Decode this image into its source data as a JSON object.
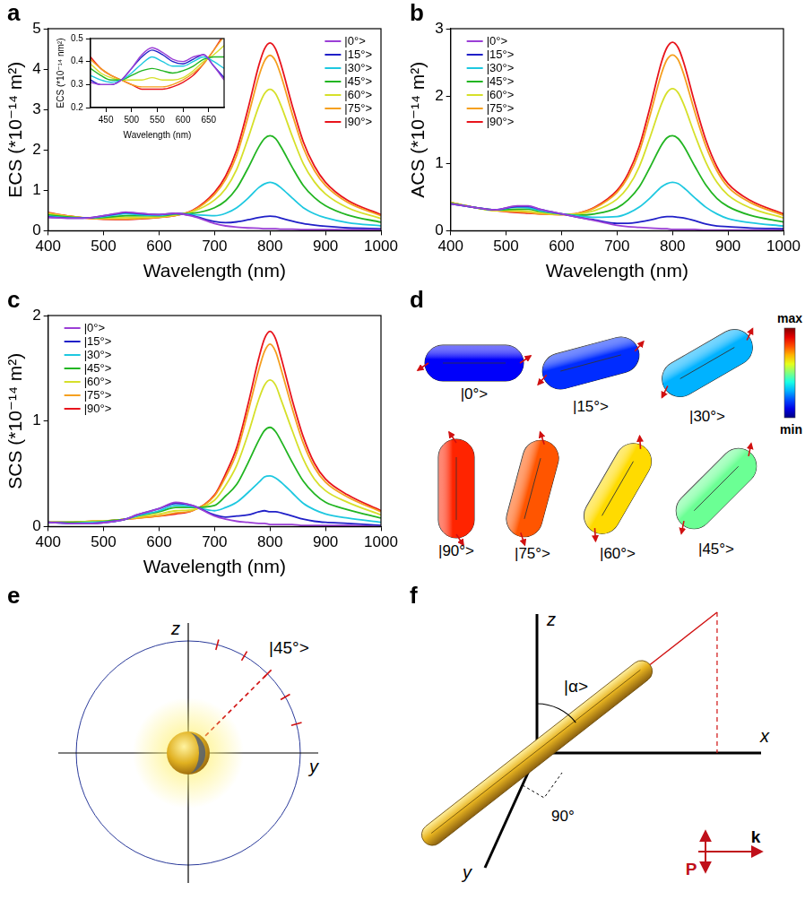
{
  "chart_data": [
    {
      "panel_label": "a",
      "type": "line",
      "x_label": "Wavelength (nm)",
      "y_label": "ECS (*10⁻¹⁴ m²)",
      "xlim": [
        400,
        1000
      ],
      "xticks": [
        400,
        500,
        600,
        700,
        800,
        900,
        1000
      ],
      "ylim": [
        0,
        5
      ],
      "yticks": [
        0,
        1,
        2,
        3,
        4,
        5
      ],
      "grid": false,
      "legend": "upper right",
      "x": [
        400,
        440,
        480,
        520,
        540,
        560,
        600,
        630,
        660,
        700,
        720,
        740,
        760,
        780,
        790,
        800,
        810,
        820,
        840,
        860,
        880,
        900,
        940,
        1000
      ],
      "series": [
        {
          "name": "|0°>",
          "color": "#9b3fd6",
          "values": [
            0.33,
            0.31,
            0.33,
            0.42,
            0.46,
            0.44,
            0.4,
            0.43,
            0.36,
            0.18,
            0.12,
            0.09,
            0.07,
            0.06,
            0.05,
            0.05,
            0.05,
            0.04,
            0.04,
            0.03,
            0.03,
            0.03,
            0.02,
            0.02
          ]
        },
        {
          "name": "|15°>",
          "color": "#2020c8",
          "values": [
            0.34,
            0.31,
            0.33,
            0.41,
            0.45,
            0.43,
            0.4,
            0.43,
            0.37,
            0.23,
            0.2,
            0.22,
            0.27,
            0.33,
            0.35,
            0.36,
            0.35,
            0.31,
            0.24,
            0.18,
            0.14,
            0.11,
            0.07,
            0.05
          ]
        },
        {
          "name": "|30°>",
          "color": "#1ec8e0",
          "values": [
            0.36,
            0.32,
            0.32,
            0.39,
            0.42,
            0.4,
            0.38,
            0.42,
            0.4,
            0.37,
            0.43,
            0.57,
            0.8,
            1.07,
            1.16,
            1.2,
            1.16,
            1.06,
            0.81,
            0.57,
            0.42,
            0.32,
            0.2,
            0.12
          ]
        },
        {
          "name": "|45°>",
          "color": "#22b522",
          "values": [
            0.39,
            0.34,
            0.32,
            0.35,
            0.37,
            0.37,
            0.37,
            0.41,
            0.43,
            0.57,
            0.74,
            1.05,
            1.54,
            2.08,
            2.28,
            2.35,
            2.28,
            2.07,
            1.57,
            1.12,
            0.82,
            0.62,
            0.39,
            0.21
          ]
        },
        {
          "name": "|60°>",
          "color": "#d6e02a",
          "values": [
            0.42,
            0.35,
            0.31,
            0.32,
            0.33,
            0.33,
            0.35,
            0.39,
            0.47,
            0.76,
            1.04,
            1.52,
            2.27,
            3.09,
            3.39,
            3.5,
            3.39,
            3.09,
            2.34,
            1.66,
            1.21,
            0.91,
            0.57,
            0.3
          ]
        },
        {
          "name": "|75°>",
          "color": "#f5a020",
          "values": [
            0.44,
            0.36,
            0.3,
            0.29,
            0.29,
            0.3,
            0.33,
            0.38,
            0.49,
            0.9,
            1.27,
            1.87,
            2.8,
            3.83,
            4.2,
            4.34,
            4.2,
            3.83,
            2.89,
            2.05,
            1.49,
            1.12,
            0.7,
            0.37
          ]
        },
        {
          "name": "|90°>",
          "color": "#e8141c",
          "values": [
            0.45,
            0.36,
            0.3,
            0.28,
            0.28,
            0.29,
            0.33,
            0.38,
            0.5,
            0.95,
            1.35,
            2.0,
            3.0,
            4.1,
            4.5,
            4.65,
            4.5,
            4.1,
            3.1,
            2.2,
            1.6,
            1.2,
            0.75,
            0.4
          ]
        }
      ],
      "inset": {
        "type": "line",
        "x_label": "Wavelength (nm)",
        "y_label": "ECS (*10⁻¹⁴ nm²)",
        "xlim": [
          420,
          680
        ],
        "xticks": [
          450,
          500,
          550,
          600,
          650
        ],
        "ylim": [
          0.2,
          0.5
        ],
        "yticks": [
          0.2,
          0.3,
          0.4,
          0.5
        ],
        "grid": false,
        "x": [
          420,
          440,
          460,
          480,
          500,
          520,
          540,
          560,
          580,
          600,
          620,
          640,
          660,
          680
        ],
        "series": [
          {
            "name": "|0°>",
            "color": "#9b3fd6",
            "values": [
              0.31,
              0.3,
              0.3,
              0.32,
              0.37,
              0.43,
              0.46,
              0.44,
              0.41,
              0.4,
              0.42,
              0.43,
              0.38,
              0.32
            ]
          },
          {
            "name": "|15°>",
            "color": "#2020c8",
            "values": [
              0.32,
              0.3,
              0.3,
              0.32,
              0.37,
              0.42,
              0.45,
              0.43,
              0.4,
              0.39,
              0.41,
              0.43,
              0.38,
              0.33
            ]
          },
          {
            "name": "|30°>",
            "color": "#1ec8e0",
            "values": [
              0.34,
              0.32,
              0.31,
              0.32,
              0.35,
              0.39,
              0.42,
              0.4,
              0.38,
              0.38,
              0.4,
              0.42,
              0.4,
              0.37
            ]
          },
          {
            "name": "|45°>",
            "color": "#22b522",
            "values": [
              0.37,
              0.34,
              0.32,
              0.32,
              0.34,
              0.36,
              0.37,
              0.36,
              0.35,
              0.36,
              0.38,
              0.41,
              0.42,
              0.42
            ]
          },
          {
            "name": "|60°>",
            "color": "#d6e02a",
            "values": [
              0.39,
              0.35,
              0.33,
              0.32,
              0.32,
              0.32,
              0.33,
              0.32,
              0.32,
              0.33,
              0.36,
              0.4,
              0.43,
              0.47
            ]
          },
          {
            "name": "|75°>",
            "color": "#f5a020",
            "values": [
              0.41,
              0.37,
              0.34,
              0.32,
              0.3,
              0.29,
              0.29,
              0.29,
              0.3,
              0.32,
              0.35,
              0.39,
              0.45,
              0.51
            ]
          },
          {
            "name": "|90°>",
            "color": "#e8141c",
            "values": [
              0.42,
              0.37,
              0.34,
              0.32,
              0.3,
              0.28,
              0.28,
              0.28,
              0.29,
              0.31,
              0.34,
              0.39,
              0.45,
              0.52
            ]
          }
        ]
      }
    },
    {
      "panel_label": "b",
      "type": "line",
      "x_label": "Wavelength (nm)",
      "y_label": "ACS (*10⁻¹⁴ m²)",
      "xlim": [
        400,
        1000
      ],
      "xticks": [
        400,
        500,
        600,
        700,
        800,
        900,
        1000
      ],
      "ylim": [
        0,
        3
      ],
      "yticks": [
        0,
        1,
        2,
        3
      ],
      "grid": false,
      "legend": "upper left",
      "x": [
        400,
        440,
        480,
        520,
        540,
        560,
        600,
        630,
        660,
        700,
        720,
        740,
        760,
        780,
        790,
        800,
        810,
        820,
        840,
        860,
        880,
        900,
        940,
        1000
      ],
      "series": [
        {
          "name": "|0°>",
          "color": "#9b3fd6",
          "values": [
            0.4,
            0.35,
            0.31,
            0.37,
            0.37,
            0.32,
            0.25,
            0.2,
            0.15,
            0.08,
            0.06,
            0.05,
            0.04,
            0.03,
            0.03,
            0.02,
            0.02,
            0.02,
            0.02,
            0.01,
            0.01,
            0.01,
            0.01,
            0.01
          ]
        },
        {
          "name": "|15°>",
          "color": "#2020c8",
          "values": [
            0.4,
            0.35,
            0.31,
            0.36,
            0.36,
            0.32,
            0.25,
            0.2,
            0.16,
            0.11,
            0.11,
            0.13,
            0.16,
            0.2,
            0.21,
            0.21,
            0.2,
            0.19,
            0.15,
            0.1,
            0.07,
            0.06,
            0.04,
            0.03
          ]
        },
        {
          "name": "|30°>",
          "color": "#1ec8e0",
          "values": [
            0.4,
            0.35,
            0.31,
            0.35,
            0.34,
            0.3,
            0.25,
            0.22,
            0.2,
            0.21,
            0.26,
            0.35,
            0.49,
            0.65,
            0.7,
            0.72,
            0.7,
            0.64,
            0.49,
            0.35,
            0.25,
            0.18,
            0.12,
            0.07
          ]
        },
        {
          "name": "|45°>",
          "color": "#22b522",
          "values": [
            0.41,
            0.35,
            0.31,
            0.32,
            0.32,
            0.29,
            0.25,
            0.23,
            0.25,
            0.34,
            0.46,
            0.65,
            0.95,
            1.27,
            1.38,
            1.41,
            1.37,
            1.26,
            0.96,
            0.68,
            0.48,
            0.36,
            0.23,
            0.13
          ]
        },
        {
          "name": "|60°>",
          "color": "#d6e02a",
          "values": [
            0.42,
            0.35,
            0.3,
            0.3,
            0.29,
            0.27,
            0.24,
            0.25,
            0.3,
            0.47,
            0.65,
            0.95,
            1.4,
            1.88,
            2.05,
            2.11,
            2.05,
            1.88,
            1.43,
            1.02,
            0.72,
            0.53,
            0.34,
            0.19
          ]
        },
        {
          "name": "|75°>",
          "color": "#f5a020",
          "values": [
            0.42,
            0.35,
            0.3,
            0.28,
            0.27,
            0.25,
            0.24,
            0.26,
            0.34,
            0.57,
            0.8,
            1.17,
            1.73,
            2.33,
            2.54,
            2.61,
            2.54,
            2.33,
            1.77,
            1.26,
            0.89,
            0.65,
            0.42,
            0.23
          ]
        },
        {
          "name": "|90°>",
          "color": "#e8141c",
          "values": [
            0.42,
            0.35,
            0.3,
            0.27,
            0.26,
            0.25,
            0.24,
            0.26,
            0.35,
            0.6,
            0.85,
            1.25,
            1.85,
            2.5,
            2.72,
            2.8,
            2.72,
            2.5,
            1.9,
            1.35,
            0.95,
            0.7,
            0.45,
            0.25
          ]
        }
      ]
    },
    {
      "panel_label": "c",
      "type": "line",
      "x_label": "Wavelength (nm)",
      "y_label": "SCS (*10⁻¹⁴ m²)",
      "xlim": [
        400,
        1000
      ],
      "xticks": [
        400,
        500,
        600,
        700,
        800,
        900,
        1000
      ],
      "ylim": [
        0,
        2
      ],
      "yticks": [
        0,
        1,
        2
      ],
      "grid": false,
      "legend": "upper left",
      "x": [
        400,
        440,
        480,
        520,
        540,
        560,
        600,
        630,
        660,
        700,
        720,
        740,
        760,
        780,
        790,
        800,
        810,
        820,
        840,
        860,
        880,
        900,
        940,
        1000
      ],
      "series": [
        {
          "name": "|0°>",
          "color": "#9b3fd6",
          "values": [
            0.04,
            0.03,
            0.03,
            0.05,
            0.07,
            0.11,
            0.17,
            0.23,
            0.2,
            0.1,
            0.07,
            0.05,
            0.04,
            0.03,
            0.03,
            0.02,
            0.02,
            0.02,
            0.02,
            0.01,
            0.01,
            0.01,
            0.01,
            0
          ]
        },
        {
          "name": "|15°>",
          "color": "#2020c8",
          "values": [
            0.04,
            0.03,
            0.03,
            0.05,
            0.07,
            0.11,
            0.17,
            0.22,
            0.2,
            0.11,
            0.09,
            0.1,
            0.11,
            0.14,
            0.15,
            0.14,
            0.14,
            0.13,
            0.1,
            0.07,
            0.05,
            0.04,
            0.03,
            0.01
          ]
        },
        {
          "name": "|30°>",
          "color": "#1ec8e0",
          "values": [
            0.04,
            0.03,
            0.04,
            0.05,
            0.07,
            0.1,
            0.15,
            0.2,
            0.19,
            0.15,
            0.18,
            0.23,
            0.32,
            0.42,
            0.47,
            0.48,
            0.46,
            0.42,
            0.32,
            0.22,
            0.16,
            0.12,
            0.08,
            0.04
          ]
        },
        {
          "name": "|45°>",
          "color": "#22b522",
          "values": [
            0.04,
            0.04,
            0.04,
            0.06,
            0.07,
            0.1,
            0.14,
            0.18,
            0.18,
            0.2,
            0.29,
            0.4,
            0.6,
            0.82,
            0.91,
            0.94,
            0.9,
            0.81,
            0.61,
            0.43,
            0.31,
            0.23,
            0.16,
            0.08
          ]
        },
        {
          "name": "|60°>",
          "color": "#d6e02a",
          "values": [
            0.04,
            0.04,
            0.05,
            0.06,
            0.07,
            0.09,
            0.12,
            0.15,
            0.16,
            0.25,
            0.39,
            0.58,
            0.87,
            1.21,
            1.34,
            1.39,
            1.34,
            1.2,
            0.91,
            0.64,
            0.45,
            0.34,
            0.23,
            0.11
          ]
        },
        {
          "name": "|75°>",
          "color": "#f5a020",
          "values": [
            0.04,
            0.04,
            0.05,
            0.06,
            0.07,
            0.08,
            0.1,
            0.13,
            0.15,
            0.29,
            0.47,
            0.7,
            1.08,
            1.49,
            1.66,
            1.73,
            1.66,
            1.49,
            1.12,
            0.79,
            0.56,
            0.42,
            0.28,
            0.14
          ]
        },
        {
          "name": "|90°>",
          "color": "#e8141c",
          "values": [
            0.04,
            0.04,
            0.05,
            0.06,
            0.07,
            0.08,
            0.1,
            0.12,
            0.15,
            0.3,
            0.5,
            0.75,
            1.15,
            1.6,
            1.78,
            1.85,
            1.78,
            1.6,
            1.2,
            0.85,
            0.6,
            0.45,
            0.3,
            0.15
          ]
        }
      ]
    }
  ],
  "diagrams": {
    "d": {
      "panel_label": "d",
      "shapes": [
        {
          "label": "|0°>",
          "angle": 0
        },
        {
          "label": "|15°>",
          "angle": 15
        },
        {
          "label": "|30°>",
          "angle": 30
        },
        {
          "label": "|90°>",
          "angle": 90
        },
        {
          "label": "|75°>",
          "angle": 75
        },
        {
          "label": "|60°>",
          "angle": 60
        },
        {
          "label": "|45°>",
          "angle": 45
        }
      ],
      "colorbar": {
        "max_label": "max",
        "min_label": "min"
      }
    },
    "e": {
      "panel_label": "e",
      "axis_labels": {
        "vertical": "z",
        "horizontal": "y"
      },
      "state_label": "|45°>",
      "state_angle": 45,
      "tick_angles": [
        15,
        30,
        45,
        60,
        75
      ]
    },
    "f": {
      "panel_label": "f",
      "axis_labels": {
        "z": "z",
        "x": "x",
        "y": "y"
      },
      "angle_label": "|α>",
      "right_angle_label": "90°",
      "k_label": "k",
      "p_label": "P"
    }
  }
}
